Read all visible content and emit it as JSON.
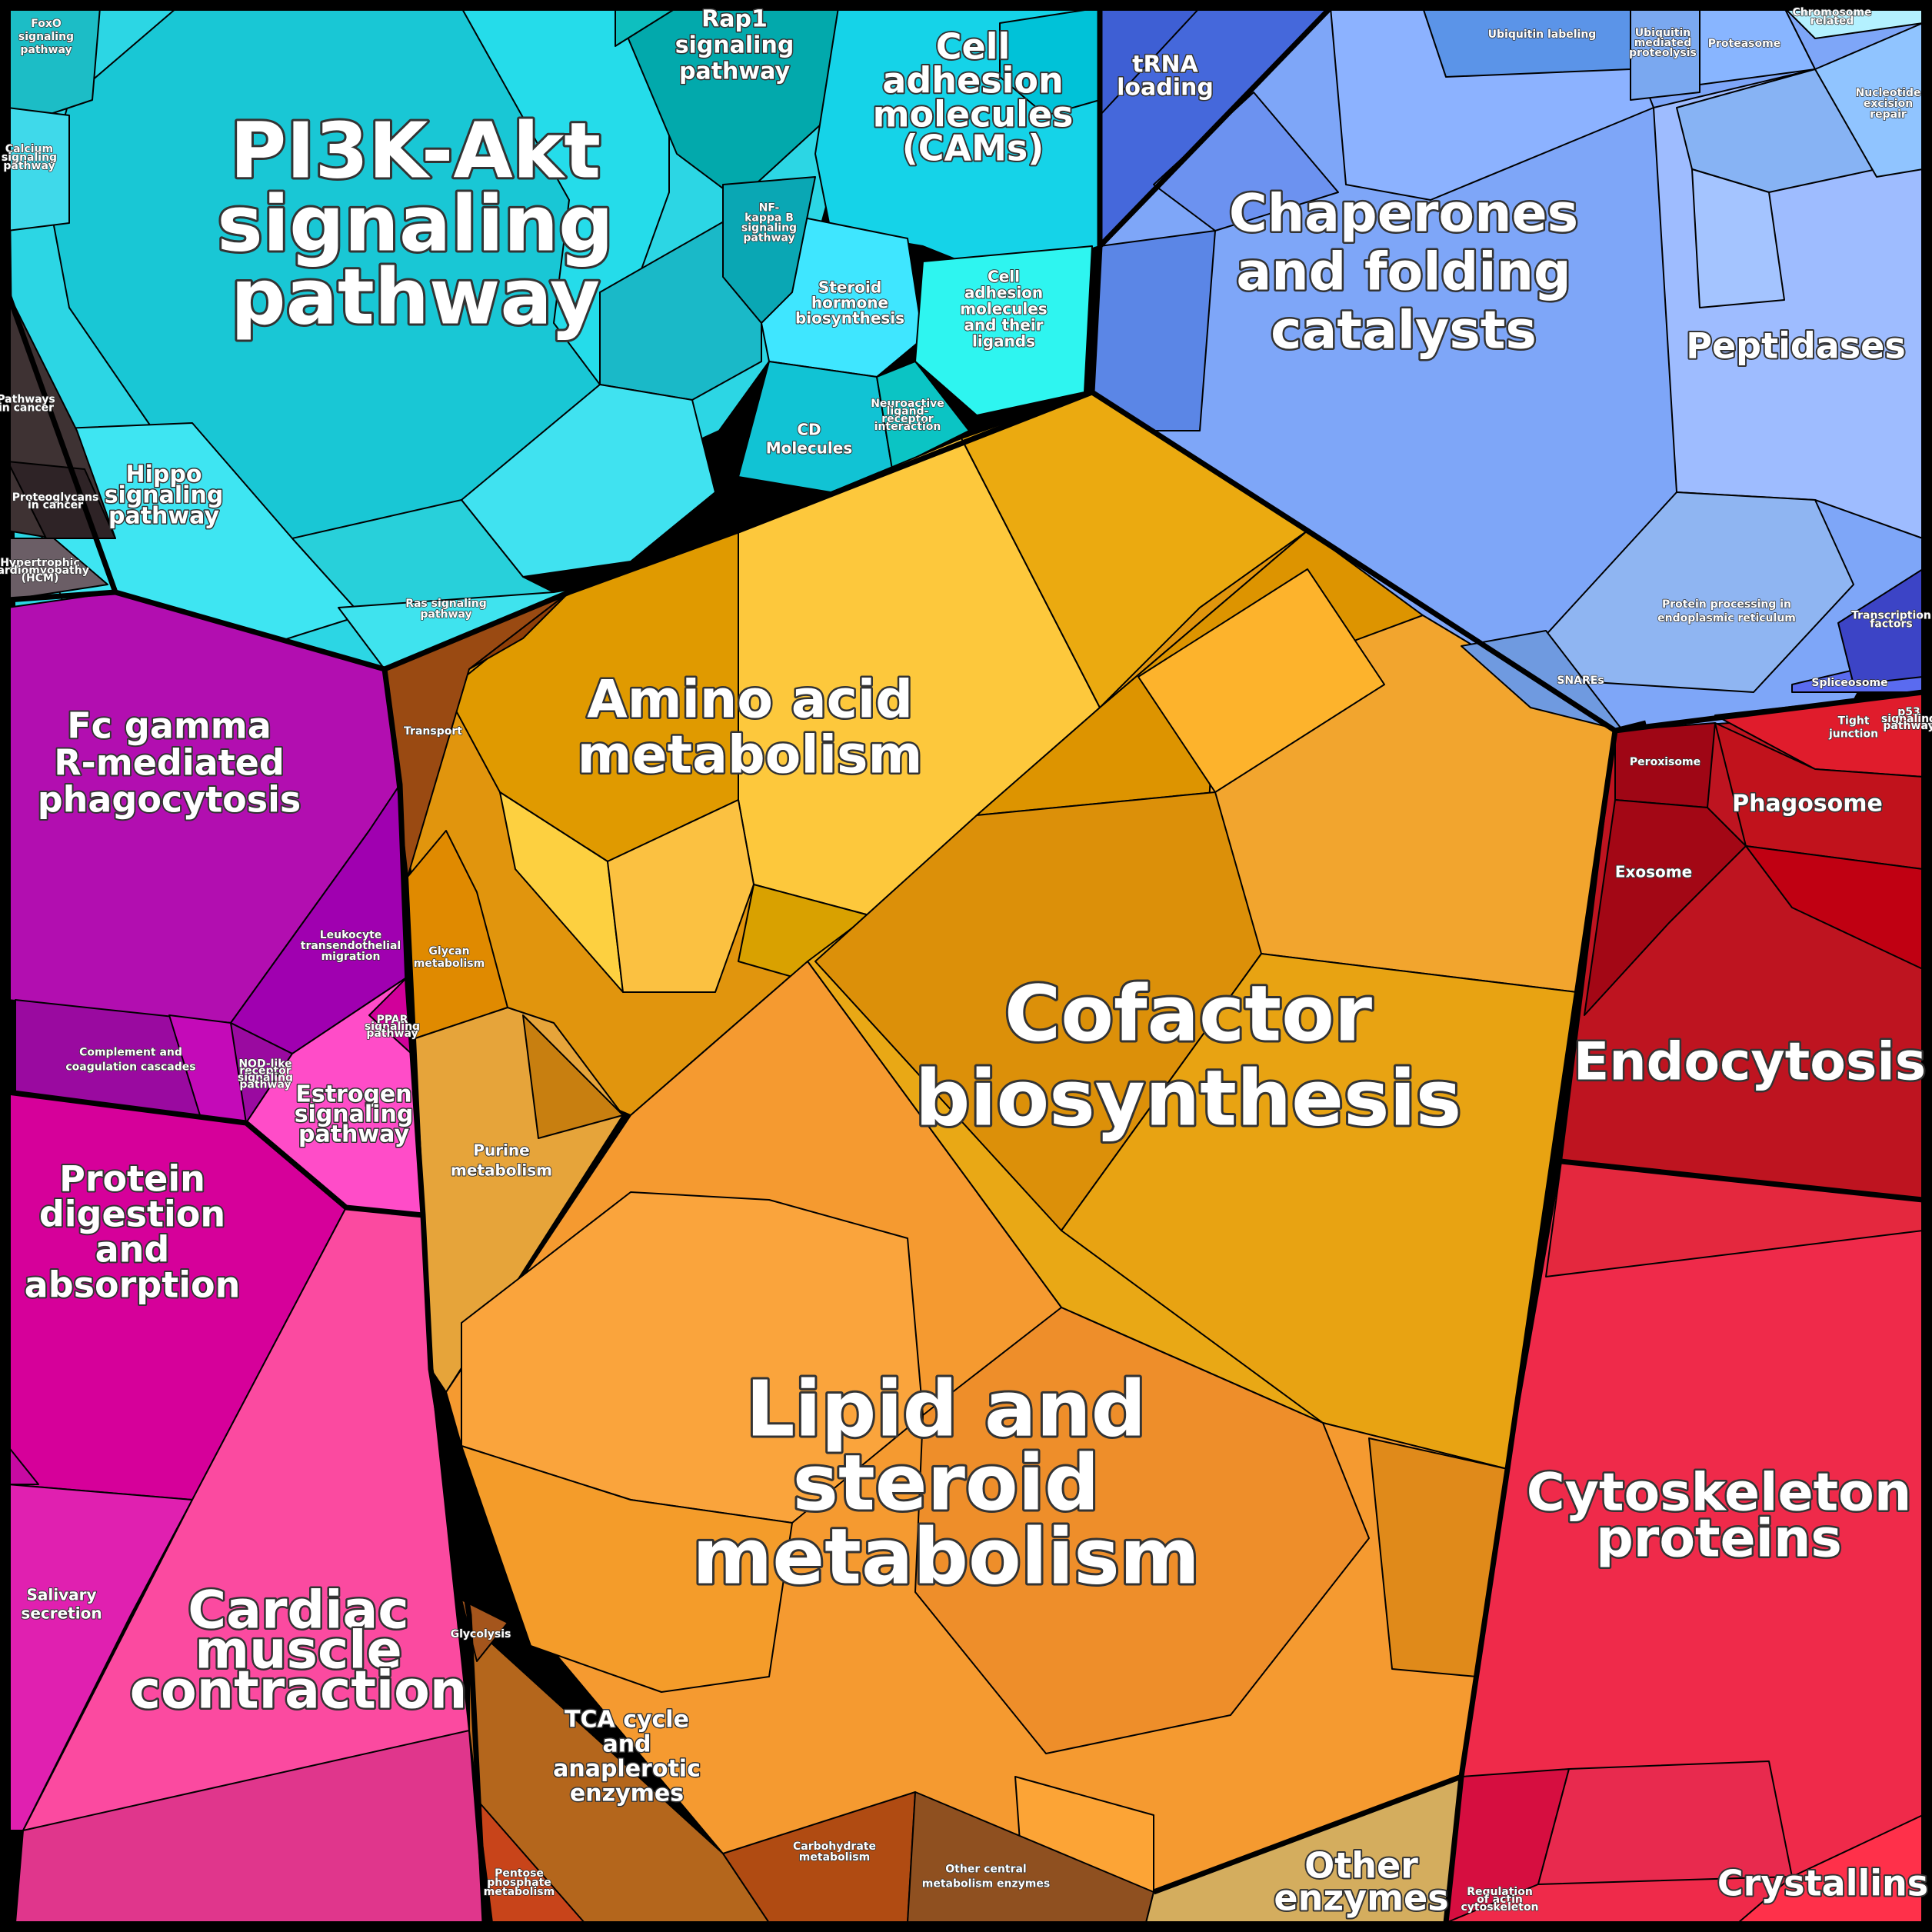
{
  "colors": {
    "signaling": "#2cd6e4",
    "chaperones": "#7ea6f8",
    "cofactor": "#e9a815",
    "lipid": "#f59a30",
    "amino": "#fdc83c",
    "immune": "#b20eb0",
    "digestion": "#d6009a",
    "cardiac": "#fb4aa0",
    "cytoskeleton": "#ef2a4a",
    "endocytosis": "#be1420",
    "tca": "#b4661c",
    "other_enzymes": "#d4ad5e",
    "trna": "#4568db",
    "cam": "#12d8ec"
  },
  "labels": {
    "pi3k": [
      "PI3K-Akt",
      "signaling",
      "pathway"
    ],
    "chaperones": [
      "Chaperones",
      "and folding",
      "catalysts"
    ],
    "cofactor": [
      "Cofactor",
      "biosynthesis"
    ],
    "lipid": [
      "Lipid and",
      "steroid",
      "metabolism"
    ],
    "amino": [
      "Amino acid",
      "metabolism"
    ],
    "fc_gamma": [
      "Fc gamma",
      "R-mediated",
      "phagocytosis"
    ],
    "protein_digestion": [
      "Protein",
      "digestion",
      "and",
      "absorption"
    ],
    "cardiac": [
      "Cardiac",
      "muscle",
      "contraction"
    ],
    "cytoskeleton": [
      "Cytoskeleton",
      "proteins"
    ],
    "endocytosis": [
      "Endocytosis"
    ],
    "crystallins": [
      "Crystallins"
    ],
    "tca": [
      "TCA cycle",
      "and",
      "anaplerotic",
      "enzymes"
    ],
    "other_enzymes": [
      "Other",
      "enzymes"
    ],
    "cell_adhesion": [
      "Cell",
      "adhesion",
      "molecules",
      "(CAMs)"
    ],
    "rap1": [
      "Rap1",
      "signaling",
      "pathway"
    ],
    "trna": [
      "tRNA",
      "loading"
    ],
    "peptidases": [
      "Peptidases"
    ],
    "hippo": [
      "Hippo",
      "signaling",
      "pathway"
    ],
    "estrogen": [
      "Estrogen",
      "signaling",
      "pathway"
    ],
    "salivary": [
      "Salivary",
      "secretion"
    ],
    "phagosome": [
      "Phagosome"
    ],
    "exosome": [
      "Exosome"
    ],
    "peroxisome": [
      "Peroxisome"
    ],
    "tight_junction": [
      "Tight",
      "junction"
    ],
    "cd_molecules": [
      "CD",
      "Molecules"
    ],
    "steroid_hormone": [
      "Steroid",
      "hormone",
      "biosynthesis"
    ],
    "cell_adhesion_ligands": [
      "Cell",
      "adhesion",
      "molecules",
      "and their",
      "ligands"
    ],
    "purine": [
      "Purine",
      "metabolism"
    ],
    "glycan": [
      "Glycan",
      "metabolism"
    ],
    "transport": [
      "Transport"
    ],
    "complement": [
      "Complement and",
      "coagulation cascades"
    ],
    "leukocyte": [
      "Leukocyte",
      "transendothelial",
      "migration"
    ],
    "foxo": [
      "FoxO",
      "signaling",
      "pathway"
    ],
    "ras": [
      "Ras signaling",
      "pathway"
    ],
    "protein_processing_er": [
      "Protein processing in",
      "endoplasmic reticulum"
    ],
    "snares": [
      "SNAREs"
    ],
    "spliceosome": [
      "Spliceosome"
    ],
    "ubiquitin_labeling": [
      "Ubiquitin labeling"
    ],
    "proteasome": [
      "Proteasome"
    ],
    "ubiquitin_mediated": [
      "Ubiquitin",
      "mediated",
      "proteolysis"
    ],
    "nucleotide_excision": [
      "Nucleotide",
      "excision",
      "repair"
    ],
    "chromosome": [
      "Chromosome",
      "related"
    ],
    "transcription_factors": [
      "Transcription",
      "factors"
    ],
    "carbohydrate": [
      "Carbohydrate",
      "metabolism"
    ],
    "other_central": [
      "Other central",
      "metabolism enzymes"
    ],
    "pentose": [
      "Pentose",
      "phosphate",
      "metabolism"
    ],
    "glycolysis": [
      "Glycolysis"
    ],
    "calcium": [
      "Calcium",
      "signaling",
      "pathway"
    ],
    "nfkb": [
      "NF-",
      "kappa B",
      "signaling",
      "pathway"
    ],
    "pathways_cancer": [
      "Pathways",
      "in cancer"
    ],
    "proteoglycans": [
      "Proteoglycans",
      "in cancer"
    ],
    "hcm": [
      "Hypertrophic",
      "cardiomyopathy",
      "(HCM)"
    ],
    "ppar": [
      "PPAR",
      "signaling",
      "pathway"
    ],
    "nod": [
      "NOD-like",
      "receptor",
      "signaling",
      "pathway"
    ],
    "neuroactive": [
      "Neuroactive",
      "ligand-",
      "receptor",
      "interaction"
    ],
    "regulation_actin": [
      "Regulation",
      "of actin",
      "cytoskeleton"
    ],
    "p53": [
      "p53",
      "signaling",
      "pathway"
    ]
  }
}
